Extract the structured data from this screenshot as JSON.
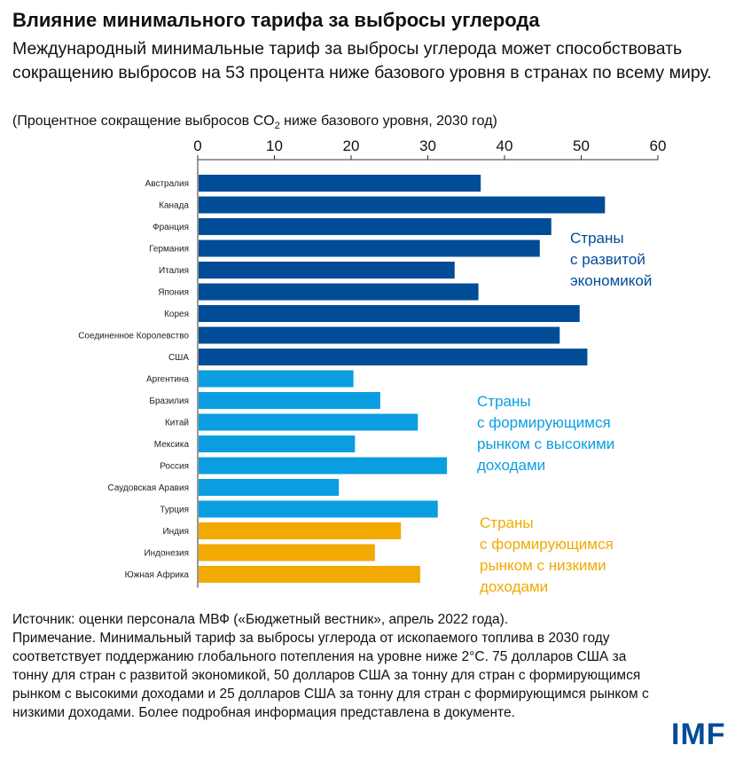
{
  "title": "Влияние минимального тарифа за выбросы углерода",
  "subtitle": "Международный минимальные тариф за выбросы углерода может способствовать сокращению выбросов на 53 процента ниже базового уровня в странах по всему миру.",
  "unit_prefix": "(Процентное сокращение выбросов CO",
  "unit_sub": "2",
  "unit_suffix": " ниже базового уровня, 2030 год)",
  "source": "Источник: оценки персонала МВФ («Бюджетный вестник», апрель 2022 года).",
  "note": "Примечание. Минимальный тариф за выбросы углерода от ископаемого топлива в 2030 году соответствует поддержанию глобального потепления на уровне ниже 2°С. 75 долларов США за тонну для стран с развитой экономикой, 50 долларов США за тонну для стран с формирующимся рынком с высокими доходами и 25 долларов США за тонну для стран с формирующимся рынком с низкими доходами. Более подробная информация представлена в документе.",
  "logo": "IMF",
  "colors": {
    "advanced": "#004c97",
    "em_high": "#0a9ee0",
    "em_low": "#f2a900"
  },
  "chart_data": {
    "type": "bar",
    "orientation": "horizontal",
    "xlim": [
      0,
      60
    ],
    "xticks": [
      0,
      10,
      20,
      30,
      40,
      50,
      60
    ],
    "axis_position": "top",
    "grid": false,
    "categories": [
      "Австралия",
      "Канада",
      "Франция",
      "Германия",
      "Италия",
      "Япония",
      "Корея",
      "Соединенное Королевство",
      "США",
      "Аргентина",
      "Бразилия",
      "Китай",
      "Мексика",
      "Россия",
      "Саудовская Аравия",
      "Турция",
      "Индия",
      "Индонезия",
      "Южная Африка"
    ],
    "values": [
      36.9,
      53.1,
      46.1,
      44.6,
      33.5,
      36.6,
      49.8,
      47.2,
      50.8,
      20.3,
      23.8,
      28.7,
      20.5,
      32.5,
      18.4,
      31.3,
      26.5,
      23.1,
      29.0
    ],
    "groups": [
      "advanced",
      "advanced",
      "advanced",
      "advanced",
      "advanced",
      "advanced",
      "advanced",
      "advanced",
      "advanced",
      "em_high",
      "em_high",
      "em_high",
      "em_high",
      "em_high",
      "em_high",
      "em_high",
      "em_low",
      "em_low",
      "em_low"
    ],
    "group_labels": [
      {
        "key": "advanced",
        "lines": [
          "Страны",
          "с развитой",
          "экономикой"
        ]
      },
      {
        "key": "em_high",
        "lines": [
          "Страны",
          "с формирующимся",
          "рынком с высокими",
          "доходами"
        ]
      },
      {
        "key": "em_low",
        "lines": [
          "Страны",
          "с формирующимся",
          "рынком с низкими",
          "доходами"
        ]
      }
    ]
  }
}
